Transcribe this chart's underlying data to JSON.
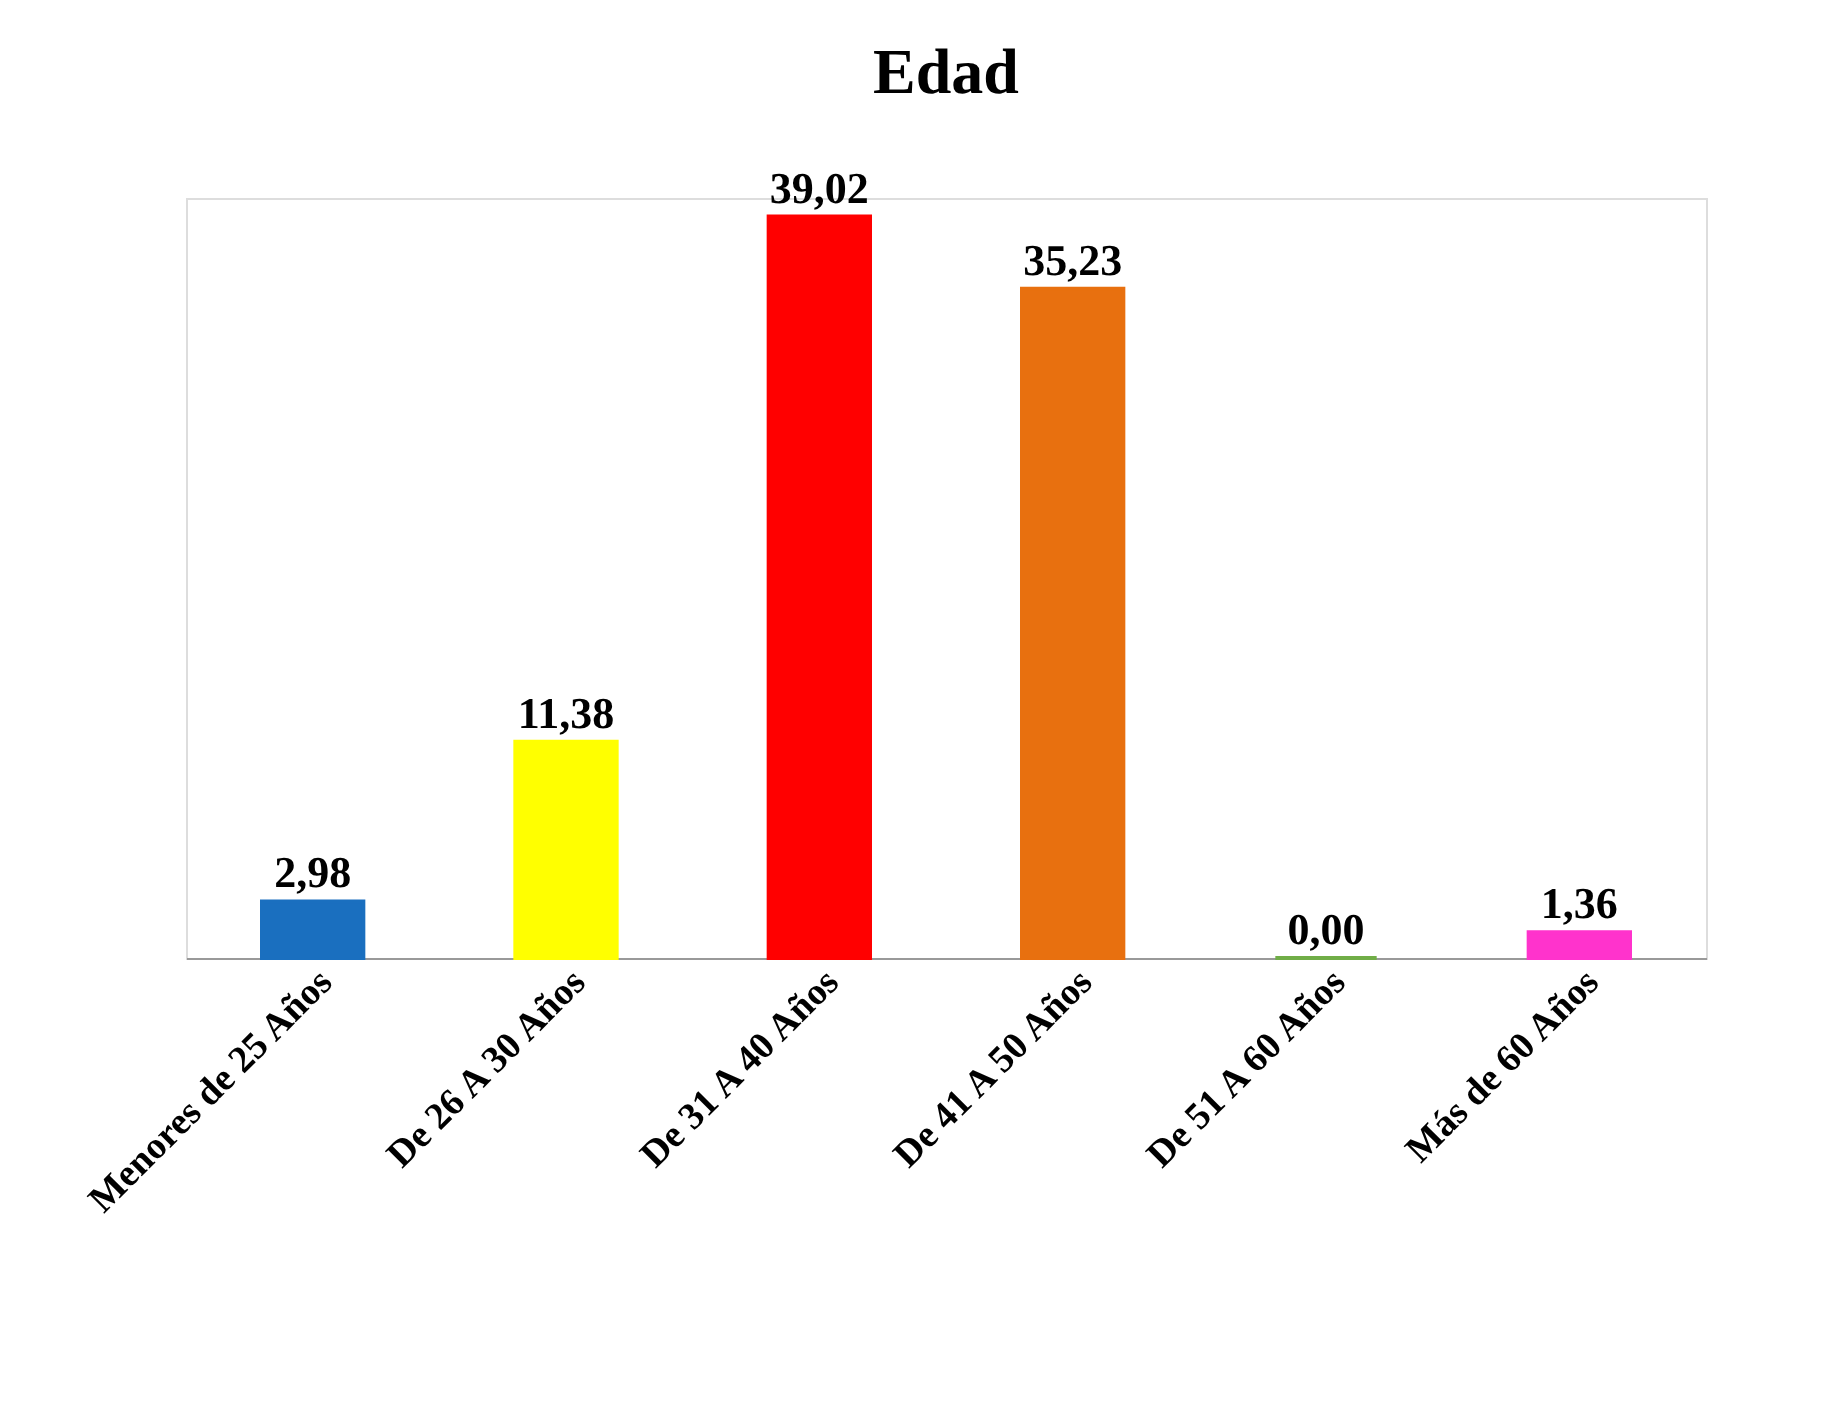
{
  "chart_data": {
    "type": "bar",
    "title": "Edad",
    "categories": [
      "Menores de 25 Años",
      "De 26 A 30 Años",
      "De 31 A 40 Años",
      "De 41 A 50 Años",
      "De 51 A 60 Años",
      "Más de 60 Años"
    ],
    "values": [
      2.98,
      11.38,
      39.02,
      35.23,
      0.0,
      1.36
    ],
    "value_labels": [
      "2,98",
      "11,38",
      "39,02",
      "35,23",
      "0,00",
      "1,36"
    ],
    "colors": [
      "#1a6fbf",
      "#ffff00",
      "#ff0000",
      "#e8700f",
      "#70ad47",
      "#ff33cc"
    ],
    "grid": false,
    "legend": false
  }
}
